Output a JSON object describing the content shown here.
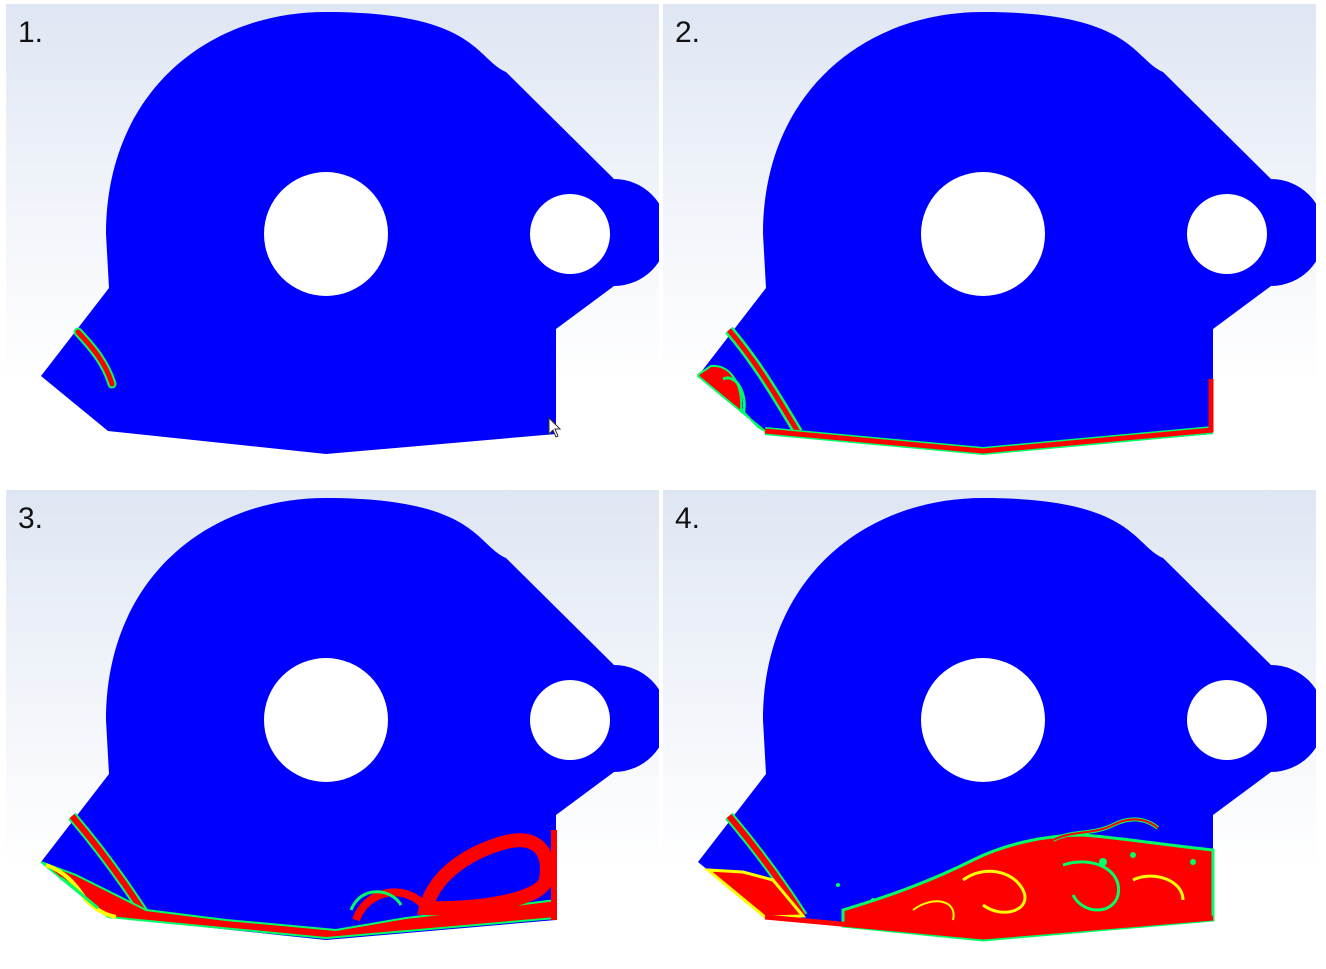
{
  "panels": [
    {
      "label": "1."
    },
    {
      "label": "2."
    },
    {
      "label": "3."
    },
    {
      "label": "4."
    }
  ],
  "colors": {
    "domain_fill": "#0000ff",
    "fluid_high": "#ff0000",
    "fluid_mid": "#ffff00",
    "fluid_edge": "#00ff66",
    "hole_fill": "#ffffff",
    "background_top": "#dfe6f3",
    "background_bottom": "#ffffff"
  }
}
